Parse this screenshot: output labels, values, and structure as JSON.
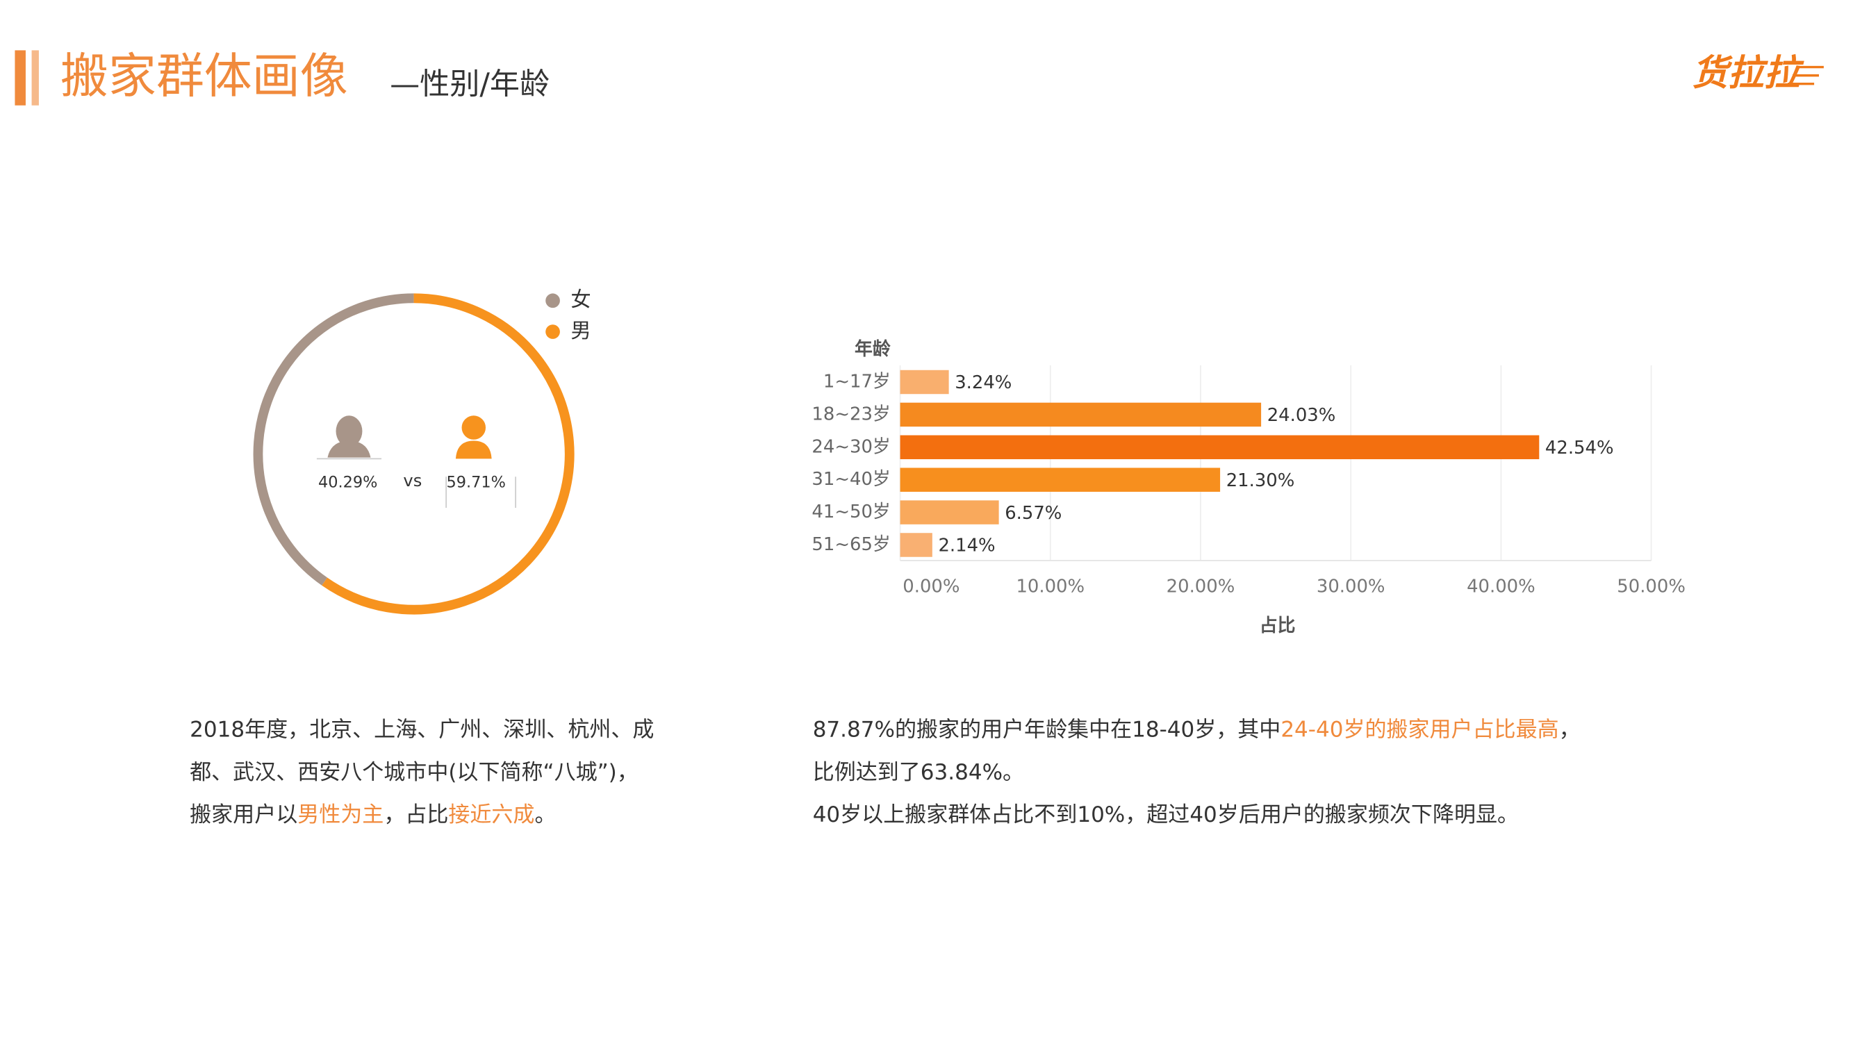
{
  "header": {
    "title": "搬家群体画像",
    "subtitle": "—性别/年龄",
    "logo": "货拉拉"
  },
  "chart_data": [
    {
      "type": "donut",
      "categories": [
        "女",
        "男"
      ],
      "values": [
        40.29,
        59.71
      ],
      "value_labels": [
        "40.29%",
        "59.71%"
      ],
      "colors": [
        "#a89589",
        "#f7931e"
      ],
      "center_text": "vs",
      "legend": "top-right"
    },
    {
      "type": "hbar",
      "ylabel": "年龄",
      "xlabel": "占比",
      "categories": [
        "1~17岁",
        "18~23岁",
        "24~30岁",
        "31~40岁",
        "41~50岁",
        "51~65岁"
      ],
      "values": [
        3.24,
        24.03,
        42.54,
        21.3,
        6.57,
        2.14
      ],
      "value_labels": [
        "3.24%",
        "24.03%",
        "42.54%",
        "21.30%",
        "6.57%",
        "2.14%"
      ],
      "colors": [
        "#f9af6e",
        "#f58a1f",
        "#f36f0f",
        "#f78f1e",
        "#f9a95c",
        "#f9b072"
      ],
      "xlim": [
        0,
        50
      ],
      "xticks": [
        {
          "value": 0,
          "label": "0.00%"
        },
        {
          "value": 10,
          "label": "10.00%"
        },
        {
          "value": 20,
          "label": "20.00%"
        },
        {
          "value": 30,
          "label": "30.00%"
        },
        {
          "value": 40,
          "label": "40.00%"
        },
        {
          "value": 50,
          "label": "50.00%"
        }
      ],
      "grid": true
    }
  ],
  "highlight_color": "#f08a3c",
  "text_blocks": [
    {
      "lines": [
        [
          {
            "text": "2018年度，北京、上海、广州、深圳、杭州、成"
          }
        ],
        [
          {
            "text": "都、武汉、西安八个城市中(以下简称“八城”)，"
          }
        ],
        [
          {
            "text": "搬家用户以"
          },
          {
            "text": "男性为主",
            "highlight": true
          },
          {
            "text": "，占比"
          },
          {
            "text": "接近六成",
            "highlight": true
          },
          {
            "text": "。"
          }
        ]
      ]
    },
    {
      "lines": [
        [
          {
            "text": "87.87%的搬家的用户年龄集中在18-40岁，其中"
          },
          {
            "text": "24-40岁的搬家用户占比最高",
            "highlight": true
          },
          {
            "text": "，"
          }
        ],
        [
          {
            "text": "比例达到了63.84%。"
          }
        ],
        [
          {
            "text": "40岁以上搬家群体占比不到10%，超过40岁后用户的搬家频次下降明显。"
          }
        ]
      ]
    }
  ]
}
